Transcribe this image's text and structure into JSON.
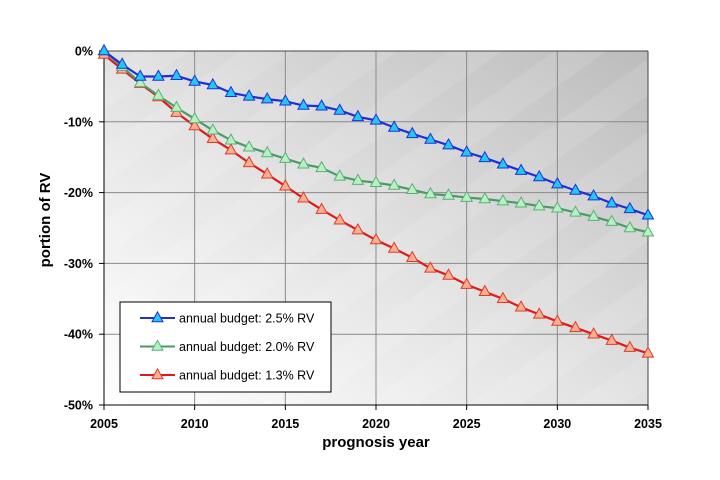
{
  "chart_data": {
    "type": "line",
    "title": "",
    "xlabel": "prognosis year",
    "ylabel": "portion of RV",
    "xlim": [
      2005,
      2035
    ],
    "ylim": [
      -50,
      0
    ],
    "x_ticks": [
      2005,
      2010,
      2015,
      2020,
      2025,
      2030,
      2035
    ],
    "x_tick_labels": [
      "2005",
      "2010",
      "2015",
      "2020",
      "2025",
      "2030",
      "2035"
    ],
    "y_ticks": [
      0,
      -10,
      -20,
      -30,
      -40,
      -50
    ],
    "y_tick_labels": [
      "0%",
      "-10%",
      "-20%",
      "-30%",
      "-40%",
      "-50%"
    ],
    "grid": true,
    "legend_position": "bottom-left",
    "x": [
      2005,
      2006,
      2007,
      2008,
      2009,
      2010,
      2011,
      2012,
      2013,
      2014,
      2015,
      2016,
      2017,
      2018,
      2019,
      2020,
      2021,
      2022,
      2023,
      2024,
      2025,
      2026,
      2027,
      2028,
      2029,
      2030,
      2031,
      2032,
      2033,
      2034,
      2035
    ],
    "series": [
      {
        "name": "annual budget: 2.5% RV",
        "line_color": "#1f2fd8",
        "marker_fill": "#22c8f0",
        "marker_stroke": "#1f2fd8",
        "marker": "triangle",
        "values": [
          0,
          -1.9,
          -3.6,
          -3.6,
          -3.5,
          -4.3,
          -4.8,
          -5.9,
          -6.4,
          -6.8,
          -7.1,
          -7.7,
          -7.8,
          -8.4,
          -9.3,
          -9.8,
          -10.8,
          -11.7,
          -12.5,
          -13.3,
          -14.3,
          -15.1,
          -16.0,
          -16.9,
          -17.8,
          -18.8,
          -19.7,
          -20.5,
          -21.5,
          -22.3,
          -23.2
        ]
      },
      {
        "name": "annual budget: 2.0% RV",
        "line_color": "#4a9a6a",
        "marker_fill": "#b8f0c0",
        "marker_stroke": "#5ab07a",
        "marker": "triangle",
        "values": [
          0,
          -2.2,
          -4.5,
          -6.3,
          -8.0,
          -9.6,
          -11.2,
          -12.6,
          -13.6,
          -14.4,
          -15.2,
          -16.0,
          -16.5,
          -17.7,
          -18.3,
          -18.6,
          -19.0,
          -19.6,
          -20.2,
          -20.4,
          -20.7,
          -20.9,
          -21.2,
          -21.5,
          -21.9,
          -22.2,
          -22.8,
          -23.4,
          -24.1,
          -25.0,
          -25.6
        ]
      },
      {
        "name": "annual budget: 1.3% RV",
        "line_color": "#e01a1a",
        "marker_fill": "#f8b090",
        "marker_stroke": "#e03a2a",
        "marker": "triangle",
        "values": [
          -0.5,
          -2.6,
          -4.6,
          -6.5,
          -8.7,
          -10.6,
          -12.4,
          -14.0,
          -15.8,
          -17.4,
          -19.1,
          -20.8,
          -22.4,
          -23.9,
          -25.3,
          -26.7,
          -27.9,
          -29.2,
          -30.7,
          -31.7,
          -33.0,
          -34.0,
          -35.0,
          -36.2,
          -37.2,
          -38.2,
          -39.1,
          -40.0,
          -40.9,
          -41.9,
          -42.7
        ]
      }
    ]
  }
}
